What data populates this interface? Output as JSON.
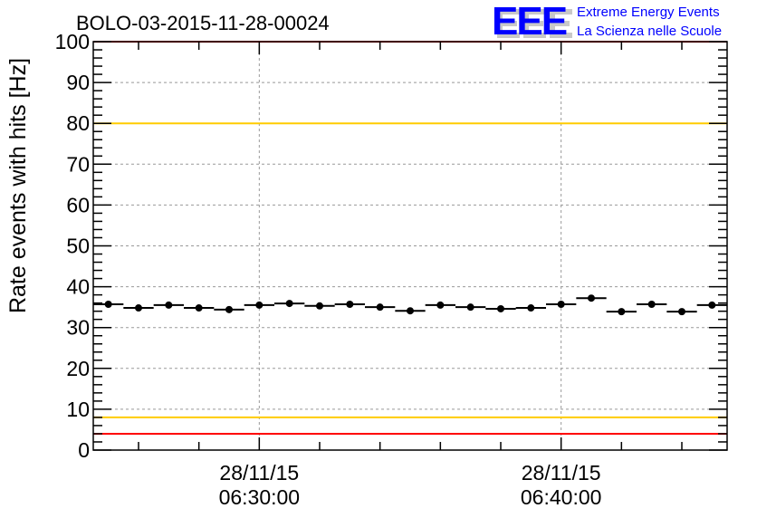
{
  "chart_data": {
    "type": "scatter",
    "title": "BOLO-03-2015-11-28-00024",
    "xlabel": "",
    "ylabel": "Rate events with hits [Hz]",
    "ylim": [
      0,
      100
    ],
    "xlim_minutes": [
      24.5,
      45.5
    ],
    "y_ticks": [
      "0",
      "10",
      "20",
      "30",
      "40",
      "50",
      "60",
      "70",
      "80",
      "90",
      "100"
    ],
    "x_ticks": [
      {
        "minute": 30,
        "date": "28/11/15",
        "time": "06:30:00"
      },
      {
        "minute": 40,
        "date": "28/11/15",
        "time": "06:40:00"
      }
    ],
    "grid": true,
    "x_minutes_after_0600": [
      25,
      26,
      27,
      28,
      29,
      30,
      31,
      32,
      33,
      34,
      35,
      36,
      37,
      38,
      39,
      40,
      41,
      42,
      43,
      44,
      45
    ],
    "values": [
      35.7,
      34.8,
      35.5,
      34.8,
      34.4,
      35.5,
      35.9,
      35.3,
      35.7,
      35.0,
      34.1,
      35.5,
      35.0,
      34.6,
      34.8,
      35.7,
      37.2,
      33.9,
      35.7,
      33.9,
      35.5
    ],
    "bin_width_minutes": 1,
    "reference_lines": [
      {
        "value": 100,
        "color": "#ff0000"
      },
      {
        "value": 80,
        "color": "#ffcc00"
      },
      {
        "value": 8,
        "color": "#ffcc00"
      },
      {
        "value": 4,
        "color": "#ff0000"
      }
    ]
  },
  "logo": {
    "letters": "EEE",
    "line1": "Extreme Energy Events",
    "line2": "La Scienza nelle Scuole",
    "color": "#0000ff"
  }
}
